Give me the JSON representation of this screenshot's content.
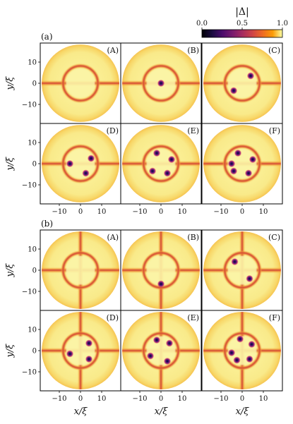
{
  "chart_data": {
    "type": "heatmap",
    "colorbar": {
      "label": "|Δ|",
      "ticks": [
        0.0,
        0.5,
        1.0
      ],
      "tick_labels": [
        "0.0",
        "0.5",
        "1.0"
      ],
      "colormap": "inferno"
    },
    "x_range": [
      -19,
      19
    ],
    "y_range": [
      -19,
      19
    ],
    "x_ticks": [
      -10,
      0,
      10
    ],
    "y_ticks": [
      10,
      0,
      -10
    ],
    "xlabel": "x/ξ",
    "ylabel": "y/ξ",
    "groups": [
      {
        "label": "(a)",
        "cross_arms": "horizontal",
        "panels": [
          {
            "label": "(A)",
            "vortices": []
          },
          {
            "label": "(B)",
            "vortices": [
              [
                0,
                0
              ]
            ]
          },
          {
            "label": "(C)",
            "vortices": [
              [
                4,
                3.5
              ],
              [
                -4,
                -3.5
              ]
            ]
          },
          {
            "label": "(D)",
            "vortices": [
              [
                5,
                2.5
              ],
              [
                -5,
                0
              ],
              [
                2.5,
                -4.5
              ]
            ]
          },
          {
            "label": "(E)",
            "vortices": [
              [
                -2,
                5
              ],
              [
                5,
                2
              ],
              [
                -4,
                -3.5
              ],
              [
                3,
                -4.5
              ]
            ]
          },
          {
            "label": "(F)",
            "vortices": [
              [
                -2,
                5
              ],
              [
                5,
                2
              ],
              [
                -5,
                0
              ],
              [
                3,
                -4.5
              ],
              [
                -4,
                -3.5
              ]
            ]
          }
        ]
      },
      {
        "label": "(b)",
        "cross_arms": "both",
        "panels": [
          {
            "label": "(A)",
            "vortices": []
          },
          {
            "label": "(B)",
            "vortices": [
              [
                0,
                -6.5
              ]
            ]
          },
          {
            "label": "(C)",
            "vortices": [
              [
                -3.5,
                4
              ],
              [
                3.5,
                -4
              ]
            ]
          },
          {
            "label": "(D)",
            "vortices": [
              [
                -5,
                -1.5
              ],
              [
                4,
                3.5
              ],
              [
                4,
                -4
              ]
            ]
          },
          {
            "label": "(E)",
            "vortices": [
              [
                -2,
                5
              ],
              [
                4,
                3.5
              ],
              [
                -5,
                -2.5
              ],
              [
                3,
                -5
              ]
            ]
          },
          {
            "label": "(F)",
            "vortices": [
              [
                -1,
                5.5
              ],
              [
                4.5,
                3
              ],
              [
                -5,
                -1
              ],
              [
                -2.5,
                -4.5
              ],
              [
                3.5,
                -4
              ]
            ]
          }
        ]
      }
    ]
  }
}
